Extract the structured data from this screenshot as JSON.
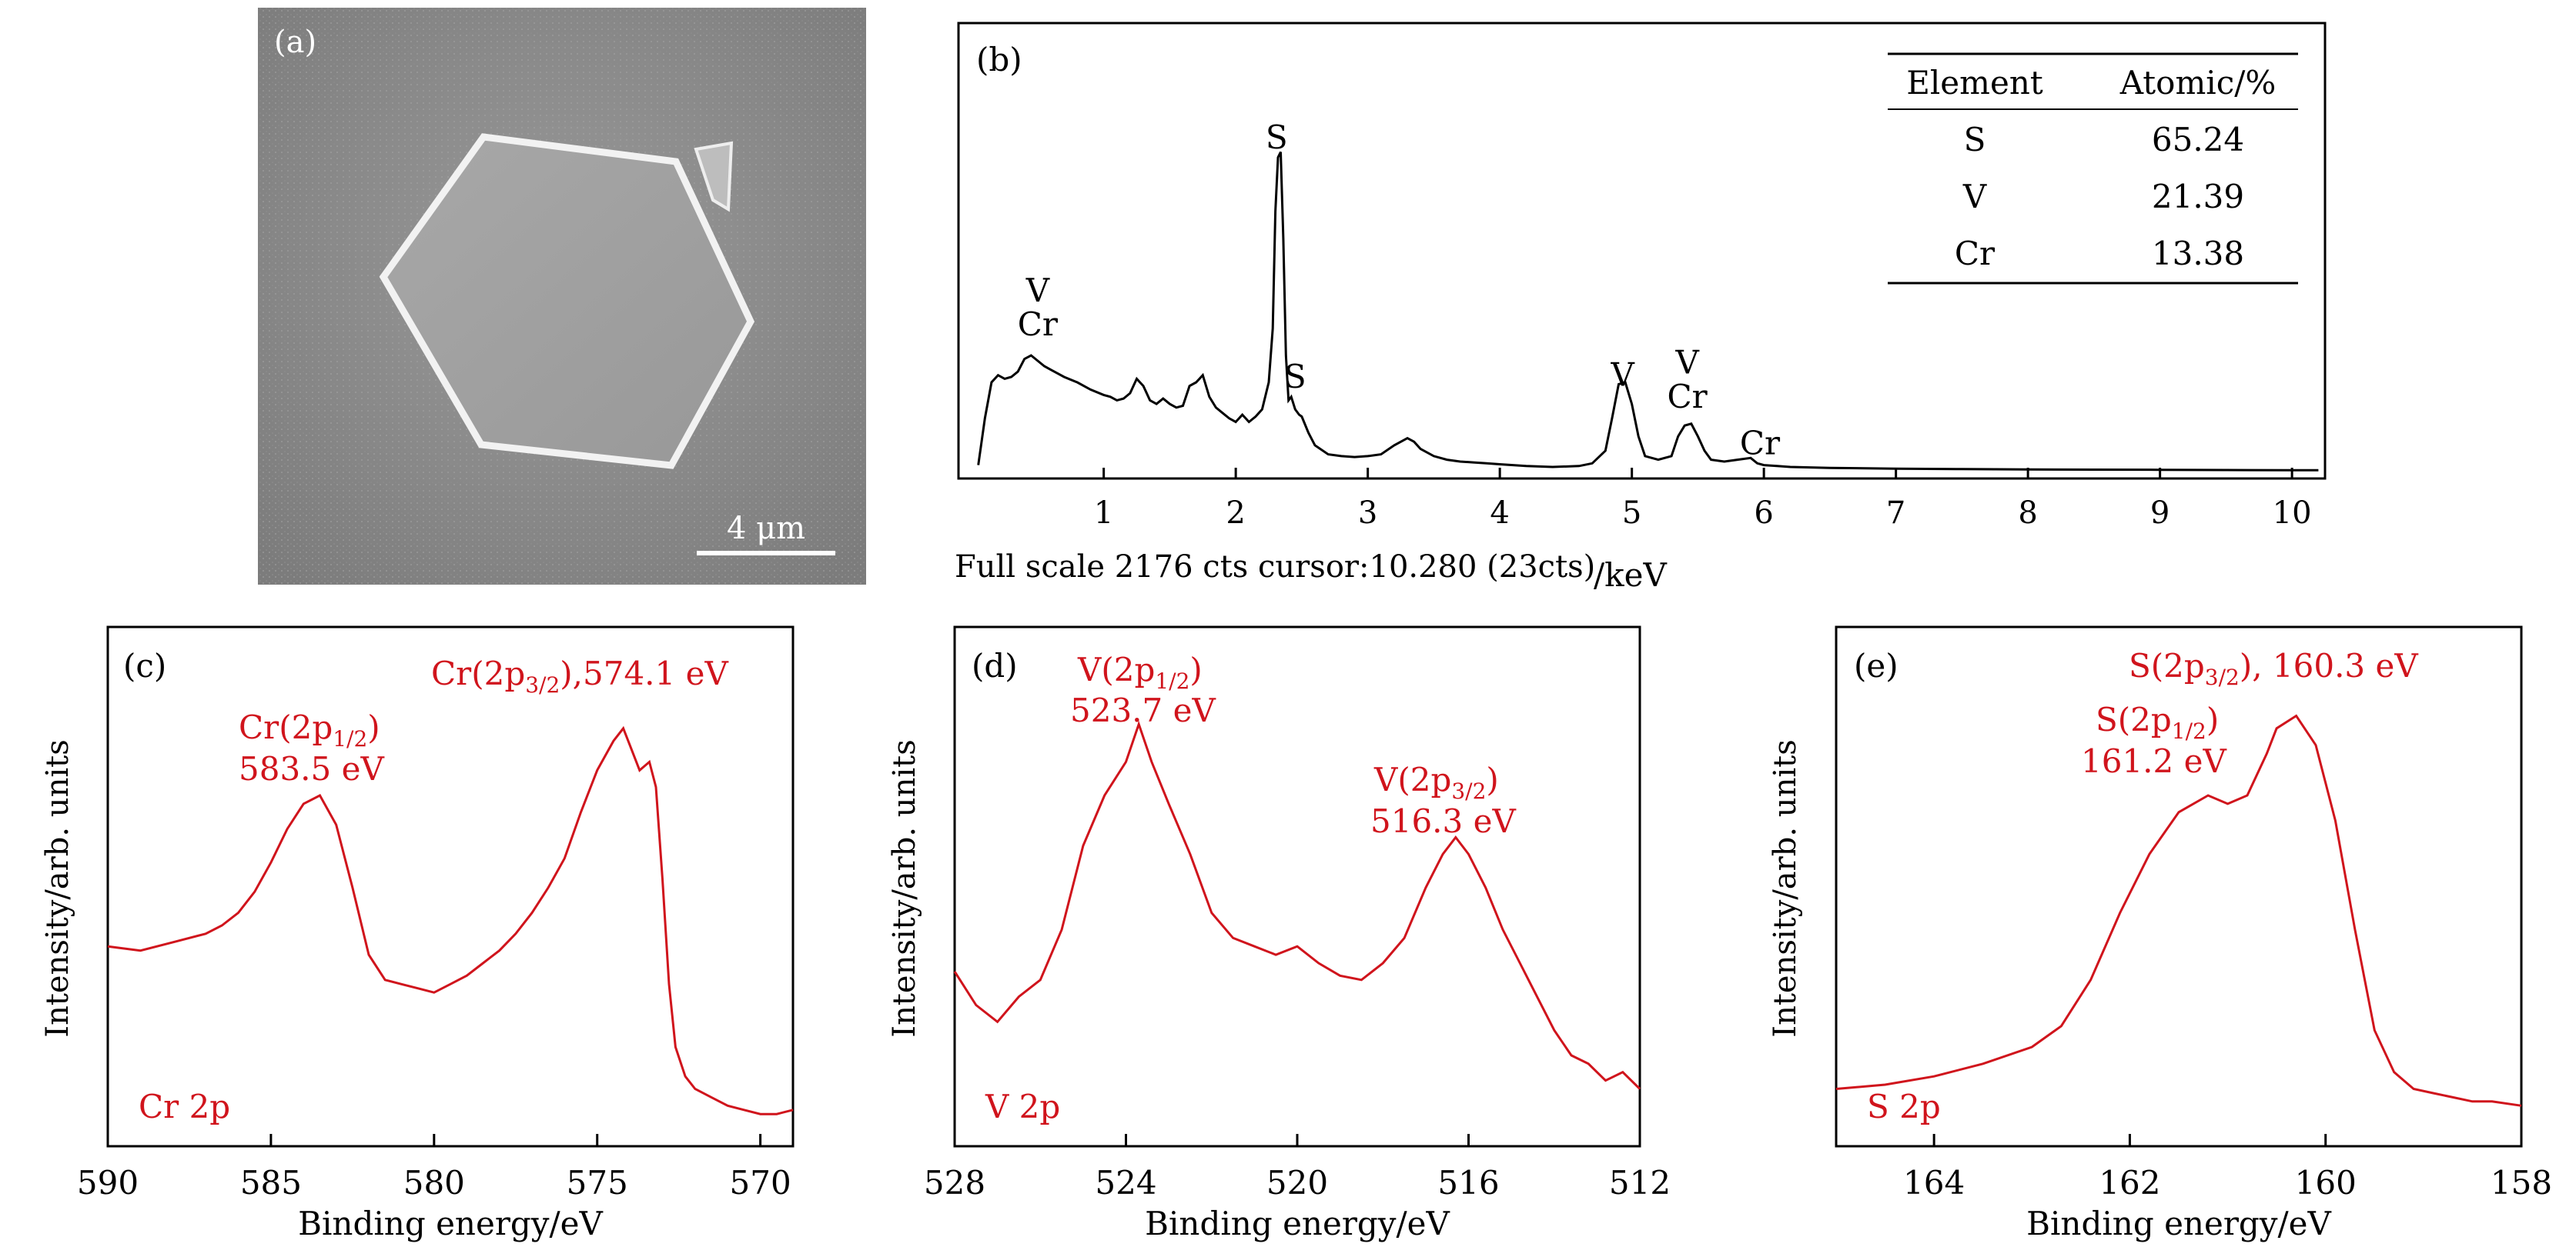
{
  "panel_a": {
    "label": "(a)",
    "scale_bar_label": "4 μm"
  },
  "chart_data": [
    {
      "id": "b",
      "type": "line",
      "panel_label": "(b)",
      "title": "",
      "xlabel": "/keV",
      "ylabel": "",
      "xlim": [
        -0.1,
        10.25
      ],
      "ylim": [
        0,
        2176
      ],
      "xticks": [
        1,
        2,
        3,
        4,
        5,
        6,
        7,
        8,
        9,
        10
      ],
      "grid": false,
      "footer_text": "Full scale 2176 cts cursor:10.280 (23cts)",
      "series": [
        {
          "x": [
            0.05,
            0.1,
            0.15,
            0.2,
            0.25,
            0.3,
            0.35,
            0.4,
            0.45,
            0.5,
            0.55,
            0.6,
            0.65,
            0.7,
            0.8,
            0.9,
            1.0,
            1.05,
            1.1,
            1.15,
            1.2,
            1.25,
            1.3,
            1.35,
            1.4,
            1.45,
            1.5,
            1.55,
            1.6,
            1.65,
            1.7,
            1.75,
            1.8,
            1.85,
            1.9,
            1.95,
            2.0,
            2.05,
            2.1,
            2.15,
            2.2,
            2.25,
            2.28,
            2.3,
            2.32,
            2.34,
            2.36,
            2.38,
            2.4,
            2.42,
            2.45,
            2.48,
            2.5,
            2.55,
            2.6,
            2.7,
            2.8,
            2.9,
            3.0,
            3.1,
            3.2,
            3.3,
            3.35,
            3.4,
            3.5,
            3.6,
            3.7,
            3.8,
            3.9,
            4.0,
            4.2,
            4.4,
            4.6,
            4.7,
            4.8,
            4.85,
            4.9,
            4.95,
            5.0,
            5.05,
            5.1,
            5.2,
            5.3,
            5.35,
            5.4,
            5.45,
            5.5,
            5.55,
            5.6,
            5.7,
            5.8,
            5.9,
            5.95,
            6.0,
            6.1,
            6.2,
            6.5,
            7.0,
            7.5,
            8.0,
            8.5,
            9.0,
            9.5,
            10.0,
            10.2
          ],
          "y": [
            40,
            300,
            500,
            540,
            520,
            530,
            560,
            630,
            650,
            620,
            590,
            570,
            550,
            530,
            500,
            460,
            430,
            420,
            400,
            410,
            440,
            520,
            480,
            400,
            380,
            410,
            380,
            360,
            370,
            480,
            500,
            540,
            420,
            360,
            330,
            300,
            280,
            320,
            280,
            310,
            350,
            500,
            800,
            1450,
            1750,
            1780,
            1300,
            650,
            400,
            420,
            350,
            320,
            310,
            220,
            150,
            100,
            90,
            85,
            90,
            100,
            150,
            190,
            170,
            130,
            90,
            70,
            60,
            55,
            50,
            45,
            35,
            30,
            35,
            50,
            120,
            300,
            490,
            500,
            380,
            200,
            90,
            70,
            90,
            200,
            260,
            270,
            200,
            120,
            70,
            60,
            70,
            80,
            50,
            40,
            35,
            30,
            25,
            20,
            18,
            16,
            15,
            14,
            13,
            12,
            12
          ]
        }
      ],
      "peak_labels": [
        {
          "text": "S",
          "x": 2.31,
          "y": 1800
        },
        {
          "text": "S",
          "x": 2.45,
          "y": 470
        },
        {
          "text": "V",
          "x": 0.5,
          "y": 950
        },
        {
          "text": "Cr",
          "x": 0.5,
          "y": 760
        },
        {
          "text": "V",
          "x": 4.93,
          "y": 480
        },
        {
          "text": "V",
          "x": 5.42,
          "y": 550
        },
        {
          "text": "Cr",
          "x": 5.42,
          "y": 360
        },
        {
          "text": "Cr",
          "x": 5.97,
          "y": 100
        }
      ],
      "table": {
        "headers": [
          "Element",
          "Atomic/%"
        ],
        "rows": [
          [
            "S",
            "65.24"
          ],
          [
            "V",
            "21.39"
          ],
          [
            "Cr",
            "13.38"
          ]
        ]
      }
    },
    {
      "id": "c",
      "type": "line",
      "panel_label": "(c)",
      "title": "",
      "xlabel": "Binding energy/eV",
      "ylabel": "Intensity/arb. units",
      "xlim": [
        590,
        569
      ],
      "ylim": [
        0,
        1.0
      ],
      "xticks": [
        590,
        585,
        580,
        575,
        570
      ],
      "grid": false,
      "corner_label": "Cr 2p",
      "series": [
        {
          "x": [
            590,
            589,
            588,
            587,
            586.5,
            586,
            585.5,
            585,
            584.5,
            584,
            583.5,
            583,
            582.5,
            582,
            581.5,
            581,
            580.5,
            580,
            579.5,
            579,
            578.5,
            578,
            577.5,
            577,
            576.5,
            576,
            575.5,
            575,
            574.5,
            574.2,
            574,
            573.7,
            573.4,
            573.2,
            573,
            572.8,
            572.6,
            572.3,
            572,
            571.5,
            571,
            570.5,
            570,
            569.5,
            569
          ],
          "y": [
            0.44,
            0.43,
            0.45,
            0.47,
            0.49,
            0.52,
            0.57,
            0.64,
            0.72,
            0.78,
            0.8,
            0.73,
            0.58,
            0.42,
            0.36,
            0.35,
            0.34,
            0.33,
            0.35,
            0.37,
            0.4,
            0.43,
            0.47,
            0.52,
            0.58,
            0.65,
            0.76,
            0.86,
            0.93,
            0.96,
            0.92,
            0.86,
            0.88,
            0.82,
            0.6,
            0.35,
            0.2,
            0.13,
            0.1,
            0.08,
            0.06,
            0.05,
            0.04,
            0.04,
            0.05
          ]
        }
      ],
      "annotations": [
        {
          "lines": [
            "Cr(2p",
            "1/2",
            ")"
          ],
          "value": "583.5 eV"
        },
        {
          "lines": [
            "Cr(2p",
            "3/2",
            "),574.1 eV"
          ],
          "value": ""
        }
      ]
    },
    {
      "id": "d",
      "type": "line",
      "panel_label": "(d)",
      "title": "",
      "xlabel": "Binding energy/eV",
      "ylabel": "Intensity/arb. units",
      "xlim": [
        528,
        512
      ],
      "ylim": [
        0,
        1.0
      ],
      "xticks": [
        528,
        524,
        520,
        516,
        512
      ],
      "grid": false,
      "corner_label": "V 2p",
      "series": [
        {
          "x": [
            528,
            527.5,
            527,
            526.5,
            526,
            525.5,
            525,
            524.5,
            524,
            523.7,
            523.4,
            523,
            522.5,
            522,
            521.5,
            521,
            520.5,
            520,
            519.5,
            519,
            518.5,
            518,
            517.5,
            517,
            516.6,
            516.3,
            516,
            515.6,
            515.2,
            514.8,
            514.4,
            514,
            513.6,
            513.2,
            512.8,
            512.4,
            512
          ],
          "y": [
            0.38,
            0.3,
            0.26,
            0.32,
            0.36,
            0.48,
            0.68,
            0.8,
            0.88,
            0.97,
            0.88,
            0.78,
            0.66,
            0.52,
            0.46,
            0.44,
            0.42,
            0.44,
            0.4,
            0.37,
            0.36,
            0.4,
            0.46,
            0.58,
            0.66,
            0.7,
            0.66,
            0.58,
            0.48,
            0.4,
            0.32,
            0.24,
            0.18,
            0.16,
            0.12,
            0.14,
            0.1
          ]
        }
      ],
      "annotations": [
        {
          "lines": [
            "V(2p",
            "1/2",
            ")"
          ],
          "value": "523.7 eV"
        },
        {
          "lines": [
            "V(2p",
            "3/2",
            ")"
          ],
          "value": "516.3 eV"
        }
      ]
    },
    {
      "id": "e",
      "type": "line",
      "panel_label": "(e)",
      "title": "",
      "xlabel": "Binding energy/eV",
      "ylabel": "Intensity/arb. units",
      "xlim": [
        165,
        158
      ],
      "ylim": [
        0,
        1.0
      ],
      "xticks": [
        164,
        162,
        160,
        158
      ],
      "grid": false,
      "corner_label": "S 2p",
      "series": [
        {
          "x": [
            165,
            164.5,
            164,
            163.5,
            163,
            162.7,
            162.4,
            162.1,
            161.8,
            161.5,
            161.2,
            161,
            160.8,
            160.6,
            160.5,
            160.3,
            160.1,
            159.9,
            159.7,
            159.5,
            159.3,
            159.1,
            158.9,
            158.7,
            158.5,
            158.3,
            158
          ],
          "y": [
            0.1,
            0.11,
            0.13,
            0.16,
            0.2,
            0.25,
            0.36,
            0.52,
            0.66,
            0.76,
            0.8,
            0.78,
            0.8,
            0.9,
            0.96,
            0.99,
            0.92,
            0.74,
            0.48,
            0.24,
            0.14,
            0.1,
            0.09,
            0.08,
            0.07,
            0.07,
            0.06
          ]
        }
      ],
      "annotations": [
        {
          "lines": [
            "S(2p",
            "3/2",
            "), 160.3 eV"
          ],
          "value": ""
        },
        {
          "lines": [
            "S(2p",
            "1/2",
            ")"
          ],
          "value": "161.2 eV"
        }
      ]
    }
  ]
}
